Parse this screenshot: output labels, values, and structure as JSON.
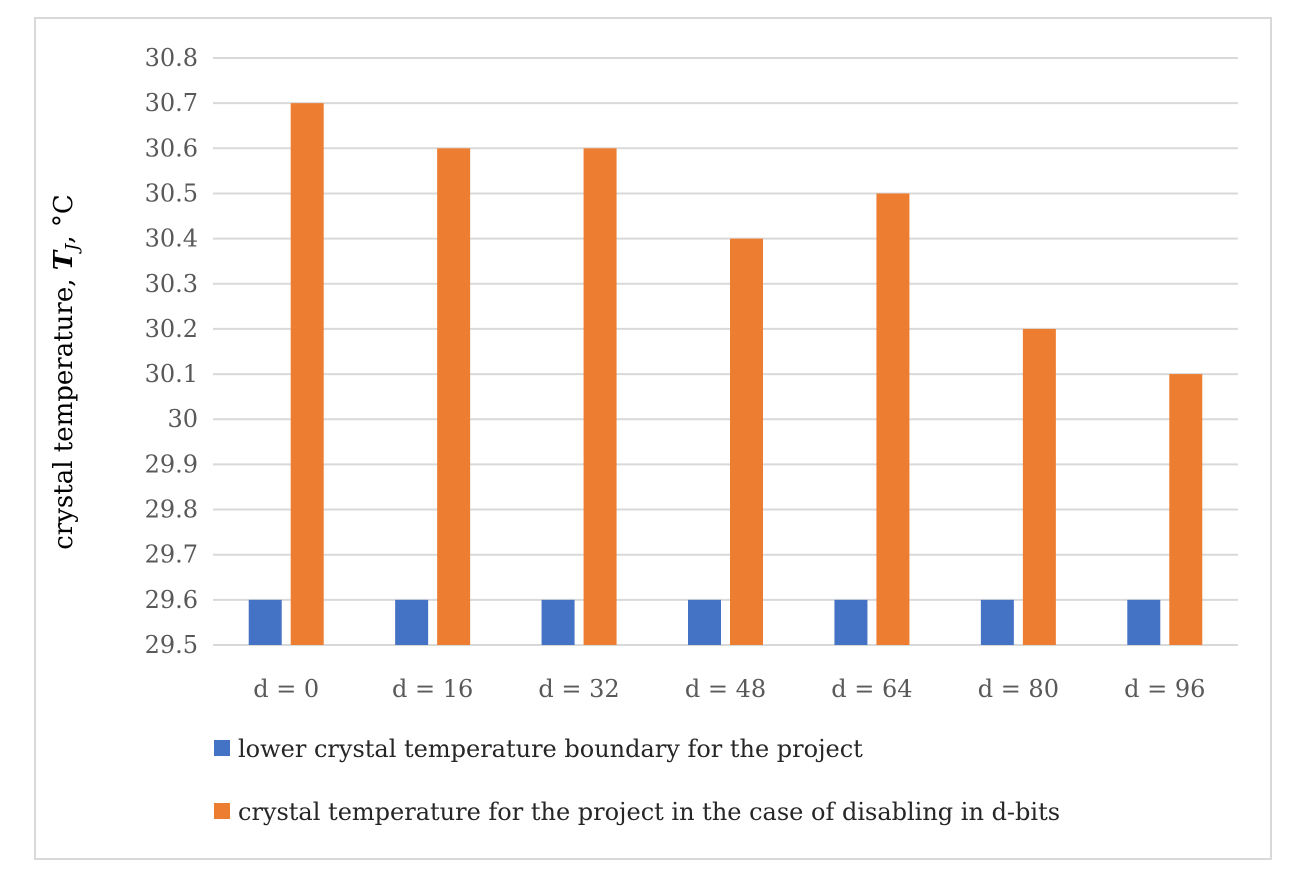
{
  "chart_data": {
    "type": "bar",
    "title": "",
    "xlabel": "",
    "ylabel": {
      "prefix": "crystal temperature, ",
      "symbol": "T",
      "subscript": "J",
      "suffix": ", °C"
    },
    "ylim": [
      29.5,
      30.8
    ],
    "ytick_step": 0.1,
    "yticks": [
      "30.8",
      "30.7",
      "30.6",
      "30.5",
      "30.4",
      "30.3",
      "30.2",
      "30.1",
      "30",
      "29.9",
      "29.8",
      "29.7",
      "29.6",
      "29.5"
    ],
    "grid": true,
    "legend_position": "bottom",
    "categories": [
      "d = 0",
      "d = 16",
      "d = 32",
      "d = 48",
      "d = 64",
      "d = 80",
      "d = 96"
    ],
    "series": [
      {
        "name": "lower crystal temperature boundary for the project",
        "color": "#4472c4",
        "values": [
          29.6,
          29.6,
          29.6,
          29.6,
          29.6,
          29.6,
          29.6
        ]
      },
      {
        "name": "crystal temperature for the project in the case of disabling in d-bits",
        "color": "#ed7d31",
        "values": [
          30.7,
          30.6,
          30.6,
          30.4,
          30.5,
          30.2,
          30.1
        ]
      }
    ]
  }
}
